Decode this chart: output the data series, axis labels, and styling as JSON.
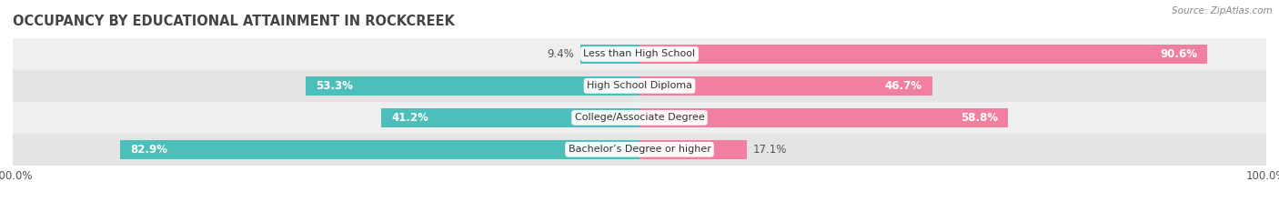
{
  "title": "OCCUPANCY BY EDUCATIONAL ATTAINMENT IN ROCKCREEK",
  "source": "Source: ZipAtlas.com",
  "categories": [
    "Less than High School",
    "High School Diploma",
    "College/Associate Degree",
    "Bachelor’s Degree or higher"
  ],
  "owner_values": [
    9.4,
    53.3,
    41.2,
    82.9
  ],
  "renter_values": [
    90.6,
    46.7,
    58.8,
    17.1
  ],
  "owner_color": "#4dbfbb",
  "renter_color": "#f07fa0",
  "row_bg_colors": [
    "#efefef",
    "#e4e4e4",
    "#efefef",
    "#e4e4e4"
  ],
  "title_fontsize": 10.5,
  "label_fontsize": 8.5,
  "tick_fontsize": 8.5,
  "source_fontsize": 7.5,
  "legend_color_owner": "#4dbfbb",
  "legend_color_renter": "#f07fa0"
}
